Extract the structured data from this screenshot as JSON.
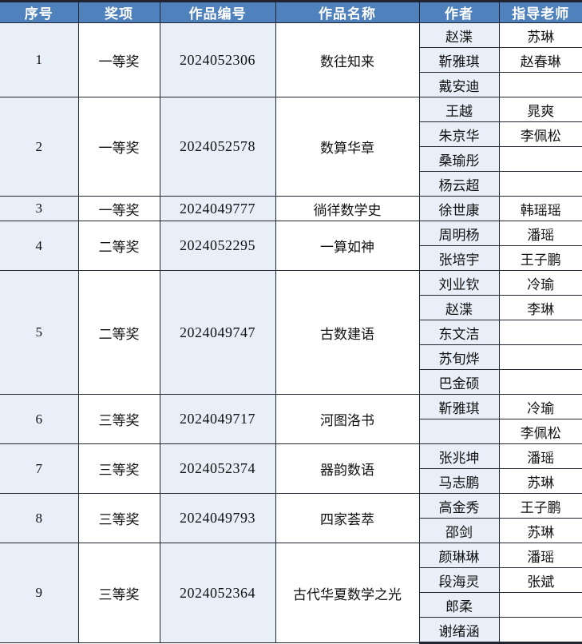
{
  "table": {
    "headers": [
      "序号",
      "奖项",
      "作品编号",
      "作品名称",
      "作者",
      "指导老师"
    ],
    "groups": [
      {
        "no": "1",
        "award": "一等奖",
        "work_id": "2024052306",
        "work_title": "数往知来",
        "authors": [
          "赵渫",
          "靳雅琪",
          "戴安迪"
        ],
        "advisors": [
          "苏琳",
          "赵春琳",
          ""
        ]
      },
      {
        "no": "2",
        "award": "一等奖",
        "work_id": "2024052578",
        "work_title": "数算华章",
        "authors": [
          "王越",
          "朱京华",
          "桑瑜彤",
          "杨云超"
        ],
        "advisors": [
          "晁爽",
          "李佩松",
          "",
          ""
        ]
      },
      {
        "no": "3",
        "award": "一等奖",
        "work_id": "2024049777",
        "work_title": "徜徉数学史",
        "authors": [
          "徐世康"
        ],
        "advisors": [
          "韩瑶瑶"
        ]
      },
      {
        "no": "4",
        "award": "二等奖",
        "work_id": "2024052295",
        "work_title": "一算如神",
        "authors": [
          "周明杨",
          "张培宇"
        ],
        "advisors": [
          "潘瑶",
          "王子鹏"
        ]
      },
      {
        "no": "5",
        "award": "二等奖",
        "work_id": "2024049747",
        "work_title": "古数建语",
        "authors": [
          "刘业钦",
          "赵渫",
          "东文洁",
          "苏旬烨",
          "巴金硕"
        ],
        "advisors": [
          "冷瑜",
          "李琳",
          "",
          "",
          ""
        ]
      },
      {
        "no": "6",
        "award": "三等奖",
        "work_id": "2024049717",
        "work_title": "河图洛书",
        "authors": [
          "靳雅琪",
          ""
        ],
        "advisors": [
          "冷瑜",
          "李佩松"
        ]
      },
      {
        "no": "7",
        "award": "三等奖",
        "work_id": "2024052374",
        "work_title": "器韵数语",
        "authors": [
          "张兆坤",
          "马志鹏"
        ],
        "advisors": [
          "潘瑶",
          "苏琳"
        ]
      },
      {
        "no": "8",
        "award": "三等奖",
        "work_id": "2024049793",
        "work_title": "四家荟萃",
        "authors": [
          "高金秀",
          "邵剑"
        ],
        "advisors": [
          "王子鹏",
          "苏琳"
        ]
      },
      {
        "no": "9",
        "award": "三等奖",
        "work_id": "2024052364",
        "work_title": "古代华夏数学之光",
        "authors": [
          "颜琳琳",
          "段海灵",
          "郎柔",
          "谢绪涵"
        ],
        "advisors": [
          "潘瑶",
          "张斌",
          "",
          ""
        ]
      }
    ]
  },
  "colors": {
    "header_bg": "#4f81bd",
    "header_text": "#ffffff",
    "cell_tint": "#e9eff8",
    "cell_white": "#ffffff",
    "grid_border": "#1f2430",
    "body_text": "#111111"
  }
}
